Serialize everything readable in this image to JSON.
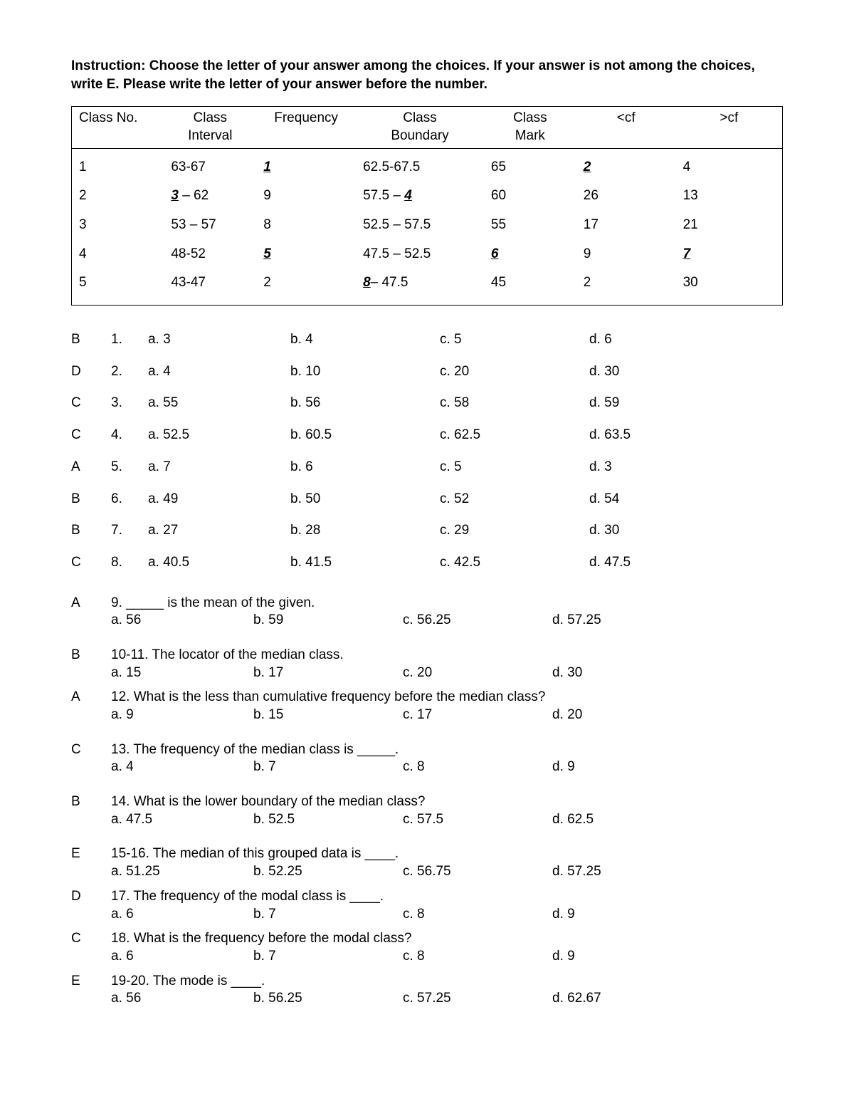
{
  "instruction": "Instruction: Choose the letter of your answer among the choices. If your answer is not among the choices, write E. Please write the letter of your answer before the number.",
  "table": {
    "headers": [
      "Class No.",
      "Class Interval",
      "Frequency",
      "Class Boundary",
      "Class Mark",
      "<cf",
      ">cf"
    ],
    "rows": [
      {
        "no": "1",
        "interval": "63-67",
        "freq_blank": "1",
        "freq_plain": "",
        "boundary": "62.5-67.5",
        "mark": "65",
        "lcf_blank": "2",
        "lcf_plain": "",
        "gcf": "4"
      },
      {
        "no": "2",
        "interval_pre": "",
        "interval_blank": "3",
        "interval_post": " – 62",
        "freq_plain": "9",
        "boundary_pre": "57.5 – ",
        "boundary_blank": "4",
        "mark": "60",
        "lcf_plain": "26",
        "gcf": "13"
      },
      {
        "no": "3",
        "interval": "53 – 57",
        "freq_plain": "8",
        "boundary": "52.5 – 57.5",
        "mark": "55",
        "lcf_plain": "17",
        "gcf": "21"
      },
      {
        "no": "4",
        "interval": "48-52",
        "freq_blank": "5",
        "boundary": "47.5 – 52.5",
        "mark_blank": "6",
        "lcf_plain": "9",
        "gcf_blank": "7"
      },
      {
        "no": "5",
        "interval": "43-47",
        "freq_plain": "2",
        "boundary_blank": "8",
        "boundary_post": "– 47.5",
        "mark": "45",
        "lcf_plain": "2",
        "gcf": "30"
      }
    ]
  },
  "mcq": [
    {
      "ans": "B",
      "num": "1.",
      "a": "a. 3",
      "b": "b. 4",
      "c": "c. 5",
      "d": "d. 6"
    },
    {
      "ans": "D",
      "num": "2.",
      "a": "a. 4",
      "b": "b. 10",
      "c": "c. 20",
      "d": "d. 30"
    },
    {
      "ans": "C",
      "num": "3.",
      "a": "a. 55",
      "b": "b. 56",
      "c": "c. 58",
      "d": "d. 59"
    },
    {
      "ans": "C",
      "num": "4.",
      "a": "a. 52.5",
      "b": "b. 60.5",
      "c": "c. 62.5",
      "d": "d. 63.5"
    },
    {
      "ans": "A",
      "num": "5.",
      "a": "a. 7",
      "b": "b. 6",
      "c": "c. 5",
      "d": "d. 3"
    },
    {
      "ans": "B",
      "num": "6.",
      "a": "a. 49",
      "b": "b. 50",
      "c": "c. 52",
      "d": "d. 54"
    },
    {
      "ans": "B",
      "num": "7.",
      "a": "a. 27",
      "b": "b. 28",
      "c": "c. 29",
      "d": "d. 30"
    },
    {
      "ans": "C",
      "num": "8.",
      "a": "a. 40.5",
      "b": "b. 41.5",
      "c": "c. 42.5",
      "d": "d. 47.5"
    }
  ],
  "long": [
    {
      "ans": "A",
      "stem": "9. _____ is the mean of the given.",
      "a": "a. 56",
      "b": "b. 59",
      "c": "c. 56.25",
      "d": "d. 57.25",
      "gap": true
    },
    {
      "ans": "B",
      "stem": "10-11. The locator of the median class.",
      "a": "a. 15",
      "b": "b. 17",
      "c": "c. 20",
      "d": "d. 30",
      "gap": true
    },
    {
      "ans": "A",
      "stem": "12. What is the less than cumulative frequency before the median class?",
      "a": "a. 9",
      "b": "b. 15",
      "c": "c. 17",
      "d": "d. 20"
    },
    {
      "ans": "C",
      "stem": "13. The frequency of the median class is _____.",
      "a": "a. 4",
      "b": "b. 7",
      "c": "c. 8",
      "d": "d. 9",
      "gap": true
    },
    {
      "ans": "B",
      "stem": "14. What is the lower boundary of the median class?",
      "a": "a. 47.5",
      "b": "b. 52.5",
      "c": "c. 57.5",
      "d": "d. 62.5",
      "gap": true
    },
    {
      "ans": "E",
      "stem": "15-16. The median of this grouped data is ____.",
      "a": "a. 51.25",
      "b": "b. 52.25",
      "c": "c. 56.75",
      "d": "d. 57.25",
      "gap": true
    },
    {
      "ans": "D",
      "stem": "17. The frequency of the modal class is ____.",
      "a": "a. 6",
      "b": "b. 7",
      "c": "c. 8",
      "d": "d. 9"
    },
    {
      "ans": "C",
      "stem": "18. What is the frequency before the modal class?",
      "a": "a. 6",
      "b": "b. 7",
      "c": "c. 8",
      "d": "d. 9"
    },
    {
      "ans": "E",
      "stem": " 19-20. The mode is ____.",
      "a": "a.   56",
      "b": "b. 56.25",
      "c": "c. 57.25",
      "d": "d. 62.67"
    }
  ]
}
